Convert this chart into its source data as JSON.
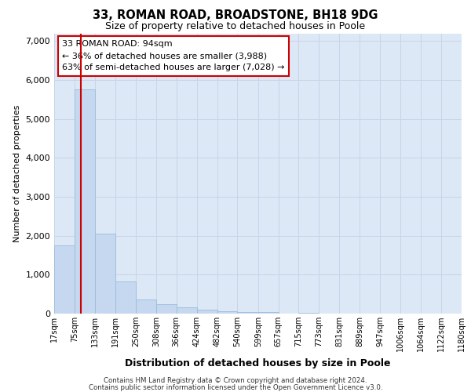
{
  "title1": "33, ROMAN ROAD, BROADSTONE, BH18 9DG",
  "title2": "Size of property relative to detached houses in Poole",
  "xlabel": "Distribution of detached houses by size in Poole",
  "ylabel": "Number of detached properties",
  "footer1": "Contains HM Land Registry data © Crown copyright and database right 2024.",
  "footer2": "Contains public sector information licensed under the Open Government Licence v3.0.",
  "annotation_title": "33 ROMAN ROAD: 94sqm",
  "annotation_line1": "← 36% of detached houses are smaller (3,988)",
  "annotation_line2": "63% of semi-detached houses are larger (7,028) →",
  "bin_edges": [
    17,
    75,
    133,
    191,
    250,
    308,
    366,
    424,
    482,
    540,
    599,
    657,
    715,
    773,
    831,
    889,
    947,
    1006,
    1064,
    1122,
    1180
  ],
  "bin_labels": [
    "17sqm",
    "75sqm",
    "133sqm",
    "191sqm",
    "250sqm",
    "308sqm",
    "366sqm",
    "424sqm",
    "482sqm",
    "540sqm",
    "599sqm",
    "657sqm",
    "715sqm",
    "773sqm",
    "831sqm",
    "889sqm",
    "947sqm",
    "1006sqm",
    "1064sqm",
    "1122sqm",
    "1180sqm"
  ],
  "bar_heights": [
    1750,
    5750,
    2050,
    820,
    370,
    240,
    155,
    100,
    55,
    35,
    35,
    0,
    30,
    0,
    0,
    0,
    0,
    0,
    0,
    0
  ],
  "bar_color": "#c5d8f0",
  "bar_edge_color": "#9bbcd8",
  "vline_color": "#cc0000",
  "vline_x": 94,
  "grid_color": "#c8d4e8",
  "background_color": "#dce8f5",
  "annotation_box_color": "#ffffff",
  "annotation_box_edge": "#cc0000",
  "ylim": [
    0,
    7200
  ],
  "yticks": [
    0,
    1000,
    2000,
    3000,
    4000,
    5000,
    6000,
    7000
  ]
}
